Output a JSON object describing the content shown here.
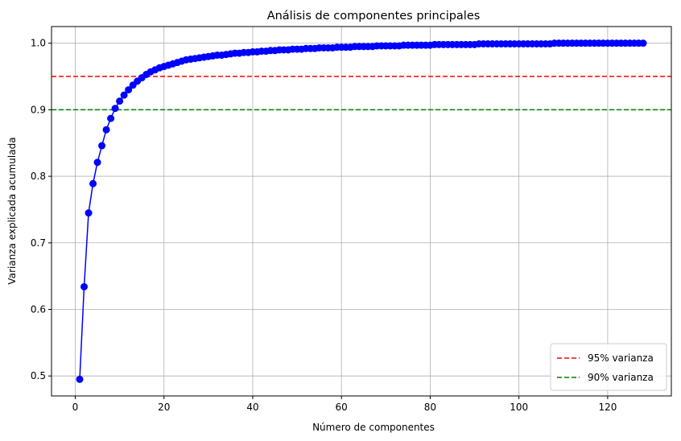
{
  "chart_data": {
    "type": "line",
    "title": "Análisis de componentes principales",
    "xlabel": "Número de componentes",
    "ylabel": "Varianza explicada acumulada",
    "xlim": [
      -5.35,
      134.35
    ],
    "ylim": [
      0.47,
      1.025
    ],
    "xticks": [
      0,
      20,
      40,
      60,
      80,
      100,
      120
    ],
    "yticks": [
      0.5,
      0.6,
      0.7,
      0.8,
      0.9,
      1.0
    ],
    "xtick_labels": [
      "0",
      "20",
      "40",
      "60",
      "80",
      "100",
      "120"
    ],
    "ytick_labels": [
      "0.5",
      "0.6",
      "0.7",
      "0.8",
      "0.9",
      "1.0"
    ],
    "grid": true,
    "legend_position": "lower-right",
    "series": [
      {
        "color": "#0000ff",
        "marker": "circle",
        "x": [
          1,
          2,
          3,
          4,
          5,
          6,
          7,
          8,
          9,
          10,
          11,
          12,
          13,
          14,
          15,
          16,
          17,
          18,
          19,
          20,
          21,
          22,
          23,
          24,
          25,
          26,
          27,
          28,
          29,
          30,
          31,
          32,
          33,
          34,
          35,
          36,
          37,
          38,
          39,
          40,
          41,
          42,
          43,
          44,
          45,
          46,
          47,
          48,
          49,
          50,
          51,
          52,
          53,
          54,
          55,
          56,
          57,
          58,
          59,
          60,
          61,
          62,
          63,
          64,
          65,
          66,
          67,
          68,
          69,
          70,
          71,
          72,
          73,
          74,
          75,
          76,
          77,
          78,
          79,
          80,
          81,
          82,
          83,
          84,
          85,
          86,
          87,
          88,
          89,
          90,
          91,
          92,
          93,
          94,
          95,
          96,
          97,
          98,
          99,
          100,
          101,
          102,
          103,
          104,
          105,
          106,
          107,
          108,
          109,
          110,
          111,
          112,
          113,
          114,
          115,
          116,
          117,
          118,
          119,
          120,
          121,
          122,
          123,
          124,
          125,
          126,
          127,
          128
        ],
        "y": [
          0.495,
          0.634,
          0.745,
          0.789,
          0.821,
          0.846,
          0.87,
          0.887,
          0.902,
          0.913,
          0.922,
          0.93,
          0.937,
          0.943,
          0.948,
          0.953,
          0.957,
          0.96,
          0.963,
          0.965,
          0.967,
          0.969,
          0.971,
          0.973,
          0.975,
          0.976,
          0.977,
          0.978,
          0.979,
          0.98,
          0.981,
          0.982,
          0.982,
          0.983,
          0.984,
          0.985,
          0.985,
          0.986,
          0.986,
          0.987,
          0.987,
          0.988,
          0.988,
          0.989,
          0.989,
          0.99,
          0.99,
          0.99,
          0.991,
          0.991,
          0.991,
          0.992,
          0.992,
          0.992,
          0.993,
          0.993,
          0.993,
          0.993,
          0.994,
          0.994,
          0.994,
          0.994,
          0.995,
          0.995,
          0.995,
          0.995,
          0.995,
          0.996,
          0.996,
          0.996,
          0.996,
          0.996,
          0.996,
          0.997,
          0.997,
          0.997,
          0.997,
          0.997,
          0.997,
          0.997,
          0.998,
          0.998,
          0.998,
          0.998,
          0.998,
          0.998,
          0.998,
          0.998,
          0.998,
          0.998,
          0.999,
          0.999,
          0.999,
          0.999,
          0.999,
          0.999,
          0.999,
          0.999,
          0.999,
          0.999,
          0.999,
          0.999,
          0.999,
          0.999,
          0.999,
          0.999,
          0.999,
          1.0,
          1.0,
          1.0,
          1.0,
          1.0,
          1.0,
          1.0,
          1.0,
          1.0,
          1.0,
          1.0,
          1.0,
          1.0,
          1.0,
          1.0,
          1.0,
          1.0,
          1.0,
          1.0,
          1.0,
          1.0
        ]
      }
    ],
    "reference_lines": [
      {
        "name": "95% varianza",
        "y": 0.95,
        "color": "#ff0000",
        "style": "dashed"
      },
      {
        "name": "90% varianza",
        "y": 0.9,
        "color": "#008000",
        "style": "dashed"
      }
    ]
  }
}
